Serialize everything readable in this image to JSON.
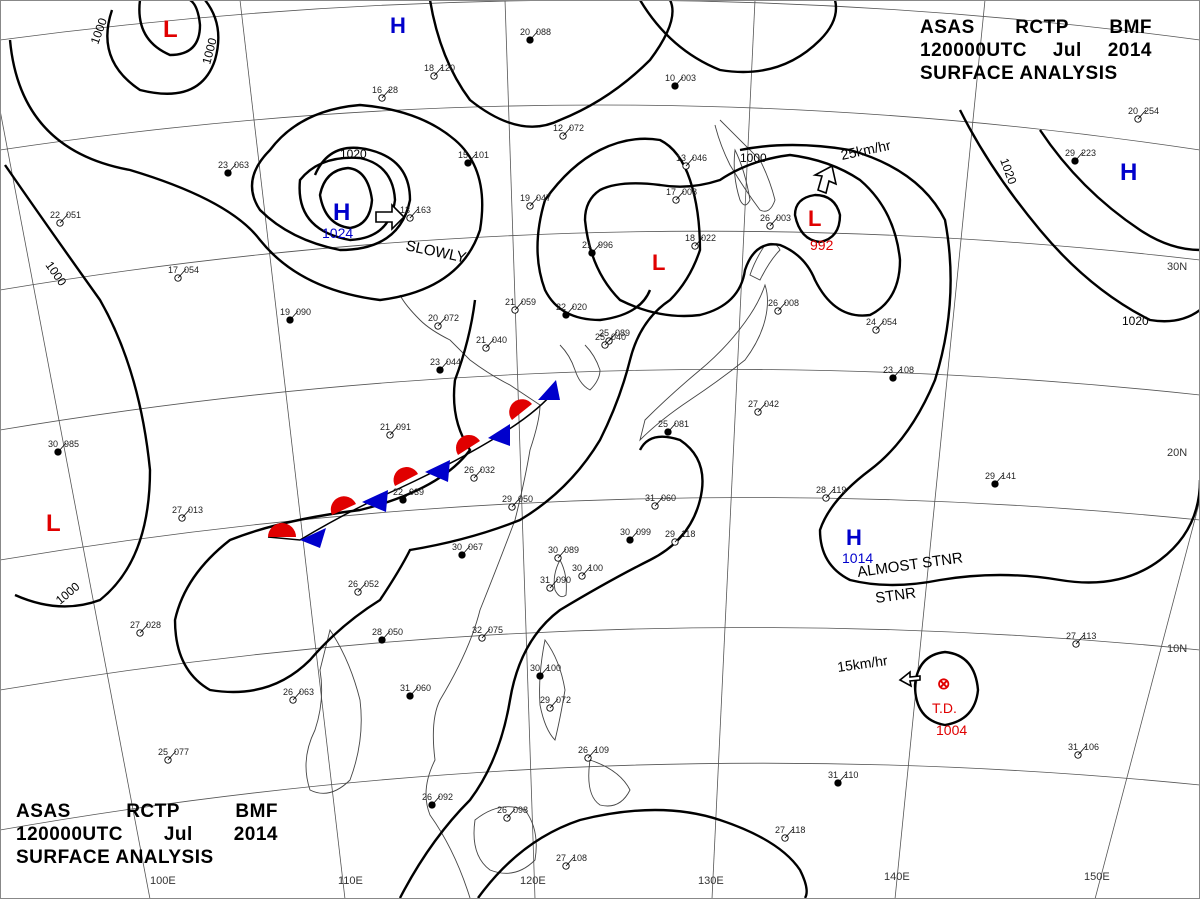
{
  "header": {
    "line1": [
      "ASAS",
      "RCTP",
      "BMF"
    ],
    "line2": [
      "120000UTC",
      "Jul",
      "2014"
    ],
    "line3": "SURFACE ANALYSIS"
  },
  "grid": {
    "lon_labels": [
      "100E",
      "110E",
      "120E",
      "130E",
      "140E",
      "150E"
    ],
    "lat_labels": [
      "30N",
      "20N",
      "10N"
    ]
  },
  "isobars": {
    "labels": [
      "1000",
      "1000",
      "1000",
      "1020",
      "1000",
      "1020",
      "1020",
      "1000"
    ]
  },
  "pressure_systems": [
    {
      "type": "L",
      "color": "#e00000"
    },
    {
      "type": "H",
      "color": "#0000cc"
    },
    {
      "type": "H",
      "color": "#0000cc",
      "value": "1024",
      "motion": "SLOWLY"
    },
    {
      "type": "L",
      "color": "#e00000"
    },
    {
      "type": "L",
      "color": "#e00000",
      "value": "992",
      "motion": "25km/hr"
    },
    {
      "type": "H",
      "color": "#0000cc"
    },
    {
      "type": "L",
      "color": "#e00000"
    },
    {
      "type": "H",
      "color": "#0000cc",
      "value": "1014",
      "motion": "ALMOST STNR"
    },
    {
      "type": "T.D.",
      "color": "#e00000",
      "value": "1004",
      "motion": "15km/hr"
    }
  ],
  "front": {
    "type": "stationary",
    "warm_color": "#e00000",
    "cold_color": "#0000cc"
  },
  "stations": [
    {
      "t": "20",
      "p": "088"
    },
    {
      "t": "18",
      "p": "120"
    },
    {
      "t": "16",
      "p": "28"
    },
    {
      "t": "15",
      "p": "101"
    },
    {
      "t": "12",
      "p": "072"
    },
    {
      "t": "19",
      "p": "047"
    },
    {
      "t": "23",
      "p": "063"
    },
    {
      "t": "22",
      "p": "051"
    },
    {
      "t": "17",
      "p": "054"
    },
    {
      "t": "19",
      "p": "090"
    },
    {
      "t": "20",
      "p": "072"
    },
    {
      "t": "21",
      "p": "059"
    },
    {
      "t": "22",
      "p": "020"
    },
    {
      "t": "21",
      "p": "040"
    },
    {
      "t": "25",
      "p": "089"
    },
    {
      "t": "23",
      "p": "044"
    },
    {
      "t": "21",
      "p": "091"
    },
    {
      "t": "13",
      "p": "163"
    },
    {
      "t": "30",
      "p": "985"
    },
    {
      "t": "27",
      "p": "013"
    },
    {
      "t": "29",
      "p": "050"
    },
    {
      "t": "30",
      "p": "067"
    },
    {
      "t": "30",
      "p": "089"
    },
    {
      "t": "26",
      "p": "052"
    },
    {
      "t": "28",
      "p": "050"
    },
    {
      "t": "32",
      "p": "075"
    },
    {
      "t": "27",
      "p": "028"
    },
    {
      "t": "31",
      "p": "060"
    },
    {
      "t": "26",
      "p": "063"
    },
    {
      "t": "25",
      "p": "077"
    },
    {
      "t": "26",
      "p": "092"
    },
    {
      "t": "26",
      "p": "098"
    },
    {
      "t": "27",
      "p": "108"
    },
    {
      "t": "30",
      "p": "100"
    },
    {
      "t": "29",
      "p": "118"
    },
    {
      "t": "28",
      "p": "119"
    },
    {
      "t": "29",
      "p": "141"
    },
    {
      "t": "27",
      "p": "113"
    },
    {
      "t": "31",
      "p": "106"
    },
    {
      "t": "31",
      "p": "110"
    },
    {
      "t": "27",
      "p": "118"
    },
    {
      "t": "24",
      "p": "054"
    },
    {
      "t": "23",
      "p": "108"
    },
    {
      "t": "26",
      "p": "003"
    },
    {
      "t": "17",
      "p": "008"
    },
    {
      "t": "21",
      "p": "996"
    },
    {
      "t": "18",
      "p": "022"
    },
    {
      "t": "13",
      "p": "046"
    },
    {
      "t": "10",
      "p": "003"
    },
    {
      "t": "20",
      "p": "254"
    },
    {
      "t": "25",
      "p": "040"
    },
    {
      "t": "22",
      "p": "039"
    },
    {
      "t": "26",
      "p": "032"
    },
    {
      "t": "31",
      "p": "060"
    },
    {
      "t": "30",
      "p": "099"
    },
    {
      "t": "31",
      "p": "090"
    },
    {
      "t": "30",
      "p": "100"
    },
    {
      "t": "29",
      "p": "223"
    },
    {
      "t": "29",
      "p": "072"
    },
    {
      "t": "26",
      "p": "109"
    },
    {
      "t": "25",
      "p": "081"
    },
    {
      "t": "27",
      "p": "042"
    },
    {
      "t": "26",
      "p": "008"
    }
  ]
}
